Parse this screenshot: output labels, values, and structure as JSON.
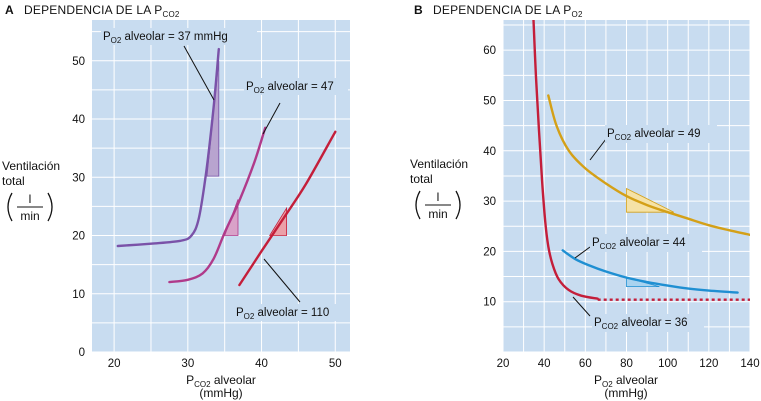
{
  "chart_data": [
    {
      "panel": "A",
      "type": "line",
      "title": "DEPENDENCIA DE LA P",
      "title_sub": "CO2",
      "xlabel_main": "P",
      "xlabel_sub": "CO2",
      "xlabel_rest": " alveolar",
      "xlabel_unit": "(mmHg)",
      "ylabel_lines": [
        "Ventilación",
        "total"
      ],
      "ylabel_unit_num": "l",
      "ylabel_unit_den": "min",
      "xlim": [
        17,
        52
      ],
      "ylim": [
        0,
        57
      ],
      "xticks": [
        20,
        30,
        40,
        50
      ],
      "yticks": [
        0,
        10,
        20,
        30,
        40,
        50
      ],
      "grid": true,
      "series": [
        {
          "name_main": "P",
          "name_sub": "O2",
          "name_rest": " alveolar = 37 mmHg",
          "color": "#7a52a8",
          "points": [
            [
              20.5,
              18.2
            ],
            [
              25,
              18.6
            ],
            [
              29,
              19.1
            ],
            [
              30.5,
              20
            ],
            [
              31.5,
              23
            ],
            [
              32.5,
              31
            ],
            [
              33.5,
              42
            ],
            [
              34.2,
              52
            ]
          ],
          "triangle": [
            [
              32.6,
              30.2
            ],
            [
              34.2,
              30.2
            ],
            [
              34.2,
              50
            ]
          ],
          "triangle_fill": "#b8a4cf"
        },
        {
          "name_main": "P",
          "name_sub": "O2",
          "name_rest": " alveolar = 47",
          "color": "#b03a8a",
          "points": [
            [
              27.5,
              12
            ],
            [
              30,
              12.4
            ],
            [
              32,
              13.5
            ],
            [
              33.5,
              16
            ],
            [
              35,
              20.5
            ],
            [
              37,
              26
            ],
            [
              39,
              32.5
            ],
            [
              40.5,
              38.5
            ]
          ],
          "triangle": [
            [
              35,
              20
            ],
            [
              36.8,
              20
            ],
            [
              36.8,
              26.2
            ]
          ],
          "triangle_fill": "#d9a2c8"
        },
        {
          "name_main": "P",
          "name_sub": "O2",
          "name_rest": " alveolar = 110",
          "color": "#c41e3a",
          "points": [
            [
              37,
              11.5
            ],
            [
              40,
              17.3
            ],
            [
              43,
              23
            ],
            [
              46,
              28.8
            ],
            [
              50,
              37.8
            ]
          ],
          "triangle": [
            [
              41.1,
              20
            ],
            [
              43.4,
              20
            ],
            [
              43.4,
              24.7
            ]
          ],
          "triangle_fill": "#eba0a8"
        }
      ]
    },
    {
      "panel": "B",
      "type": "line",
      "title": "DEPENDENCIA DE LA P",
      "title_sub": "O2",
      "xlabel_main": "P",
      "xlabel_sub": "O2",
      "xlabel_rest": "  alveolar",
      "xlabel_unit": "(mmHg)",
      "ylabel_lines": [
        "Ventilación",
        "total"
      ],
      "ylabel_unit_num": "l",
      "ylabel_unit_den": "min",
      "xlim": [
        20,
        140
      ],
      "ylim": [
        0,
        66
      ],
      "xticks": [
        20,
        40,
        60,
        80,
        100,
        120,
        140
      ],
      "yticks": [
        10,
        20,
        30,
        40,
        50,
        60
      ],
      "grid": true,
      "series": [
        {
          "name_main": "P",
          "name_sub": "CO2",
          "name_rest": " alveolar = 49",
          "color": "#d4a017",
          "points": [
            [
              42,
              51
            ],
            [
              46,
              45
            ],
            [
              52,
              40
            ],
            [
              60,
              36.5
            ],
            [
              70,
              33.5
            ],
            [
              80,
              31
            ],
            [
              90,
              29.2
            ],
            [
              100,
              27.8
            ],
            [
              110,
              26.5
            ],
            [
              120,
              25.2
            ],
            [
              130,
              24.2
            ],
            [
              140,
              23.3
            ]
          ],
          "triangle": [
            [
              80,
              32.5
            ],
            [
              80,
              27.8
            ],
            [
              103,
              27.8
            ]
          ],
          "triangle_fill": "#f5e2a6"
        },
        {
          "name_main": "P",
          "name_sub": "CO2",
          "name_rest": " alveolar = 44",
          "color": "#1f8fd2",
          "points": [
            [
              49,
              20.2
            ],
            [
              55,
              18.5
            ],
            [
              62,
              17.2
            ],
            [
              70,
              16
            ],
            [
              80,
              14.8
            ],
            [
              90,
              13.9
            ],
            [
              100,
              13.2
            ],
            [
              110,
              12.6
            ],
            [
              120,
              12.2
            ],
            [
              134,
              11.8
            ]
          ],
          "triangle": [
            [
              80,
              14.8
            ],
            [
              80,
              13
            ],
            [
              96,
              13
            ]
          ],
          "triangle_fill": "#a9d3ef"
        },
        {
          "name_main": "P",
          "name_sub": "CO2",
          "name_rest": " alveolar = 36",
          "color": "#c41e3a",
          "points": [
            [
              34.8,
              66
            ],
            [
              36,
              55
            ],
            [
              37.5,
              44
            ],
            [
              39,
              34
            ],
            [
              40.5,
              26
            ],
            [
              42,
              21
            ],
            [
              44,
              17.5
            ],
            [
              47,
              14.5
            ],
            [
              52,
              12.3
            ],
            [
              58,
              11.2
            ],
            [
              66,
              10.6
            ]
          ],
          "dashed": [
            [
              66,
              10.4
            ],
            [
              140,
              10.4
            ]
          ]
        }
      ]
    }
  ],
  "labels": {
    "panel_a": "A",
    "panel_b": "B"
  }
}
